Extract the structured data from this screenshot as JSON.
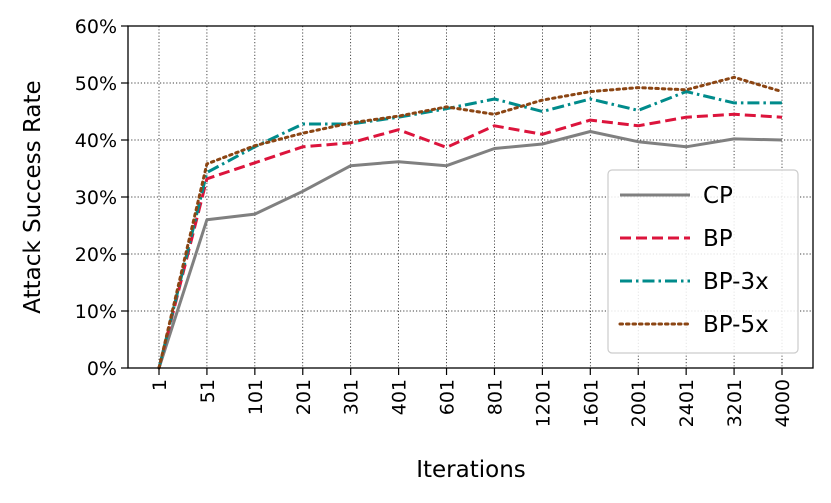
{
  "chart_data": {
    "type": "line",
    "xlabel": "Iterations",
    "ylabel": "Attack Success Rate",
    "categories": [
      "1",
      "51",
      "101",
      "201",
      "301",
      "401",
      "601",
      "801",
      "1201",
      "1601",
      "2001",
      "2401",
      "3201",
      "4000"
    ],
    "yticks": [
      "0%",
      "10%",
      "20%",
      "30%",
      "40%",
      "50%",
      "60%"
    ],
    "ylim": [
      0,
      60
    ],
    "grid": true,
    "legend_position": "lower-right",
    "series": [
      {
        "name": "CP",
        "color": "#808080",
        "dash": "solid",
        "values": [
          0,
          26,
          27,
          31,
          35.5,
          36.2,
          35.5,
          38.5,
          39.3,
          41.5,
          39.7,
          38.8,
          40.2,
          40
        ]
      },
      {
        "name": "BP",
        "color": "#dc143c",
        "dash": "dashed",
        "values": [
          0,
          33.2,
          36,
          38.8,
          39.5,
          41.8,
          38.7,
          42.5,
          41,
          43.5,
          42.5,
          44,
          44.5,
          44
        ]
      },
      {
        "name": "BP-3x",
        "color": "#008b8b",
        "dash": "dashdot",
        "values": [
          0,
          34.3,
          38.8,
          42.8,
          42.8,
          44,
          45.5,
          47.2,
          45,
          47.2,
          45.2,
          48.5,
          46.5,
          46.5
        ]
      },
      {
        "name": "BP-5x",
        "color": "#8b4513",
        "dash": "dotted",
        "values": [
          0,
          35.8,
          39,
          41.2,
          43,
          44.2,
          45.8,
          44.5,
          47,
          48.5,
          49.2,
          48.8,
          51,
          48.5
        ]
      }
    ]
  }
}
